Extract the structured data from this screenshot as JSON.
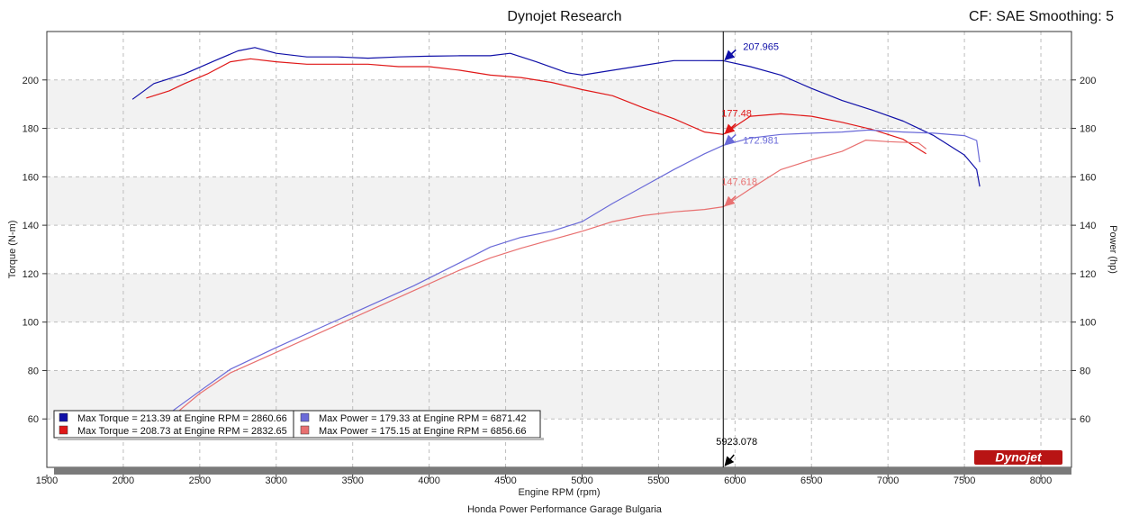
{
  "header": {
    "title": "Dynojet Research",
    "right_text": "CF: SAE Smoothing: 5"
  },
  "footer": {
    "caption": "Honda Power Performance Garage Bulgaria"
  },
  "logo": {
    "text": "Dynojet"
  },
  "colors": {
    "torque1": "#1010a8",
    "torque2": "#e01818",
    "power1": "#6a6ad8",
    "power2": "#e87070",
    "cursor": "#000000",
    "band": "#f2f2f2"
  },
  "chart_data": {
    "type": "line",
    "xlabel": "Engine RPM (rpm)",
    "ylabel_left": "Torque (N-m)",
    "ylabel_right": "Power (hp)",
    "xlim": [
      1500,
      8200
    ],
    "ylim": [
      40,
      220
    ],
    "x_ticks": [
      1500,
      2000,
      2500,
      3000,
      3500,
      4000,
      4500,
      5000,
      5500,
      6000,
      6500,
      7000,
      7500,
      8000
    ],
    "y_ticks": [
      60,
      80,
      100,
      120,
      140,
      160,
      180,
      200
    ],
    "grid": true,
    "cursor": {
      "x": 5923.078,
      "label": "5923.078"
    },
    "annotations": [
      {
        "label": "207.965",
        "x": 5923,
        "y": 207.965,
        "color": "#1010a8"
      },
      {
        "label": "177.48",
        "x": 5923,
        "y": 177.48,
        "color": "#e01818"
      },
      {
        "label": "172.981",
        "x": 5923,
        "y": 172.981,
        "color": "#6a6ad8"
      },
      {
        "label": "147.618",
        "x": 5923,
        "y": 147.618,
        "color": "#e87070"
      }
    ],
    "legend": [
      {
        "text": "Max Torque = 213.39 at Engine RPM = 2860.66",
        "color": "#1010a8"
      },
      {
        "text": "Max Torque = 208.73 at Engine RPM = 2832.65",
        "color": "#e01818"
      },
      {
        "text": "Max Power = 179.33 at Engine RPM = 6871.42",
        "color": "#6a6ad8"
      },
      {
        "text": "Max Power = 175.15 at Engine RPM = 6856.66",
        "color": "#e87070"
      }
    ],
    "legend_position": "bottom-left",
    "series": [
      {
        "color": "#1010a8",
        "x": [
          2060,
          2200,
          2400,
          2600,
          2750,
          2860,
          3000,
          3200,
          3400,
          3600,
          3800,
          4000,
          4200,
          4400,
          4530,
          4700,
          4900,
          5000,
          5200,
          5400,
          5600,
          5800,
          5923,
          6100,
          6300,
          6500,
          6700,
          6900,
          7100,
          7300,
          7500,
          7580,
          7600
        ],
        "values": [
          192,
          198.5,
          202.5,
          208,
          212,
          213.39,
          211,
          209.5,
          209.5,
          209,
          209.5,
          209.8,
          210,
          210,
          211,
          207.5,
          203,
          202,
          204,
          206,
          208,
          208,
          207.965,
          205.5,
          202,
          196.5,
          191.5,
          187.5,
          183,
          177,
          169,
          163,
          156
        ]
      },
      {
        "color": "#e01818",
        "x": [
          2150,
          2300,
          2400,
          2550,
          2700,
          2832,
          3000,
          3200,
          3400,
          3600,
          3800,
          4000,
          4200,
          4400,
          4600,
          4800,
          5000,
          5200,
          5400,
          5600,
          5800,
          5923,
          6100,
          6300,
          6500,
          6700,
          6900,
          7100,
          7250
        ],
        "values": [
          192.5,
          195.5,
          198.5,
          202.5,
          207.5,
          208.73,
          207.5,
          206.5,
          206.5,
          206.5,
          205.5,
          205.5,
          204,
          202,
          201,
          199,
          196,
          193.5,
          188.5,
          184,
          178.5,
          177.48,
          185,
          186,
          185,
          182.5,
          179.5,
          175.5,
          169.5
        ]
      },
      {
        "color": "#6a6ad8",
        "x": [
          2250,
          2500,
          2700,
          3000,
          3300,
          3600,
          3900,
          4200,
          4400,
          4600,
          4800,
          5000,
          5200,
          5400,
          5600,
          5800,
          5923,
          6100,
          6300,
          6500,
          6700,
          6871,
          7100,
          7300,
          7500,
          7580,
          7600
        ],
        "values": [
          60,
          71.5,
          80.5,
          89.5,
          98,
          106.5,
          115,
          124.5,
          131,
          135,
          137.5,
          141.5,
          149,
          156,
          163,
          169.5,
          172.981,
          176,
          177.5,
          178,
          178.5,
          179.33,
          178.5,
          178,
          177,
          175,
          166
        ]
      },
      {
        "color": "#e87070",
        "x": [
          2300,
          2500,
          2700,
          3000,
          3300,
          3600,
          3900,
          4200,
          4400,
          4600,
          4800,
          5000,
          5200,
          5400,
          5600,
          5800,
          5923,
          6100,
          6300,
          6500,
          6700,
          6856,
          7000,
          7200,
          7250
        ],
        "values": [
          60,
          70.5,
          79,
          87.5,
          96,
          104.5,
          113,
          121.5,
          126.5,
          130.5,
          134,
          137.5,
          141.5,
          144,
          145.5,
          146.5,
          147.618,
          155,
          163,
          167,
          170.5,
          175.15,
          174.5,
          174,
          171.5
        ]
      }
    ]
  }
}
